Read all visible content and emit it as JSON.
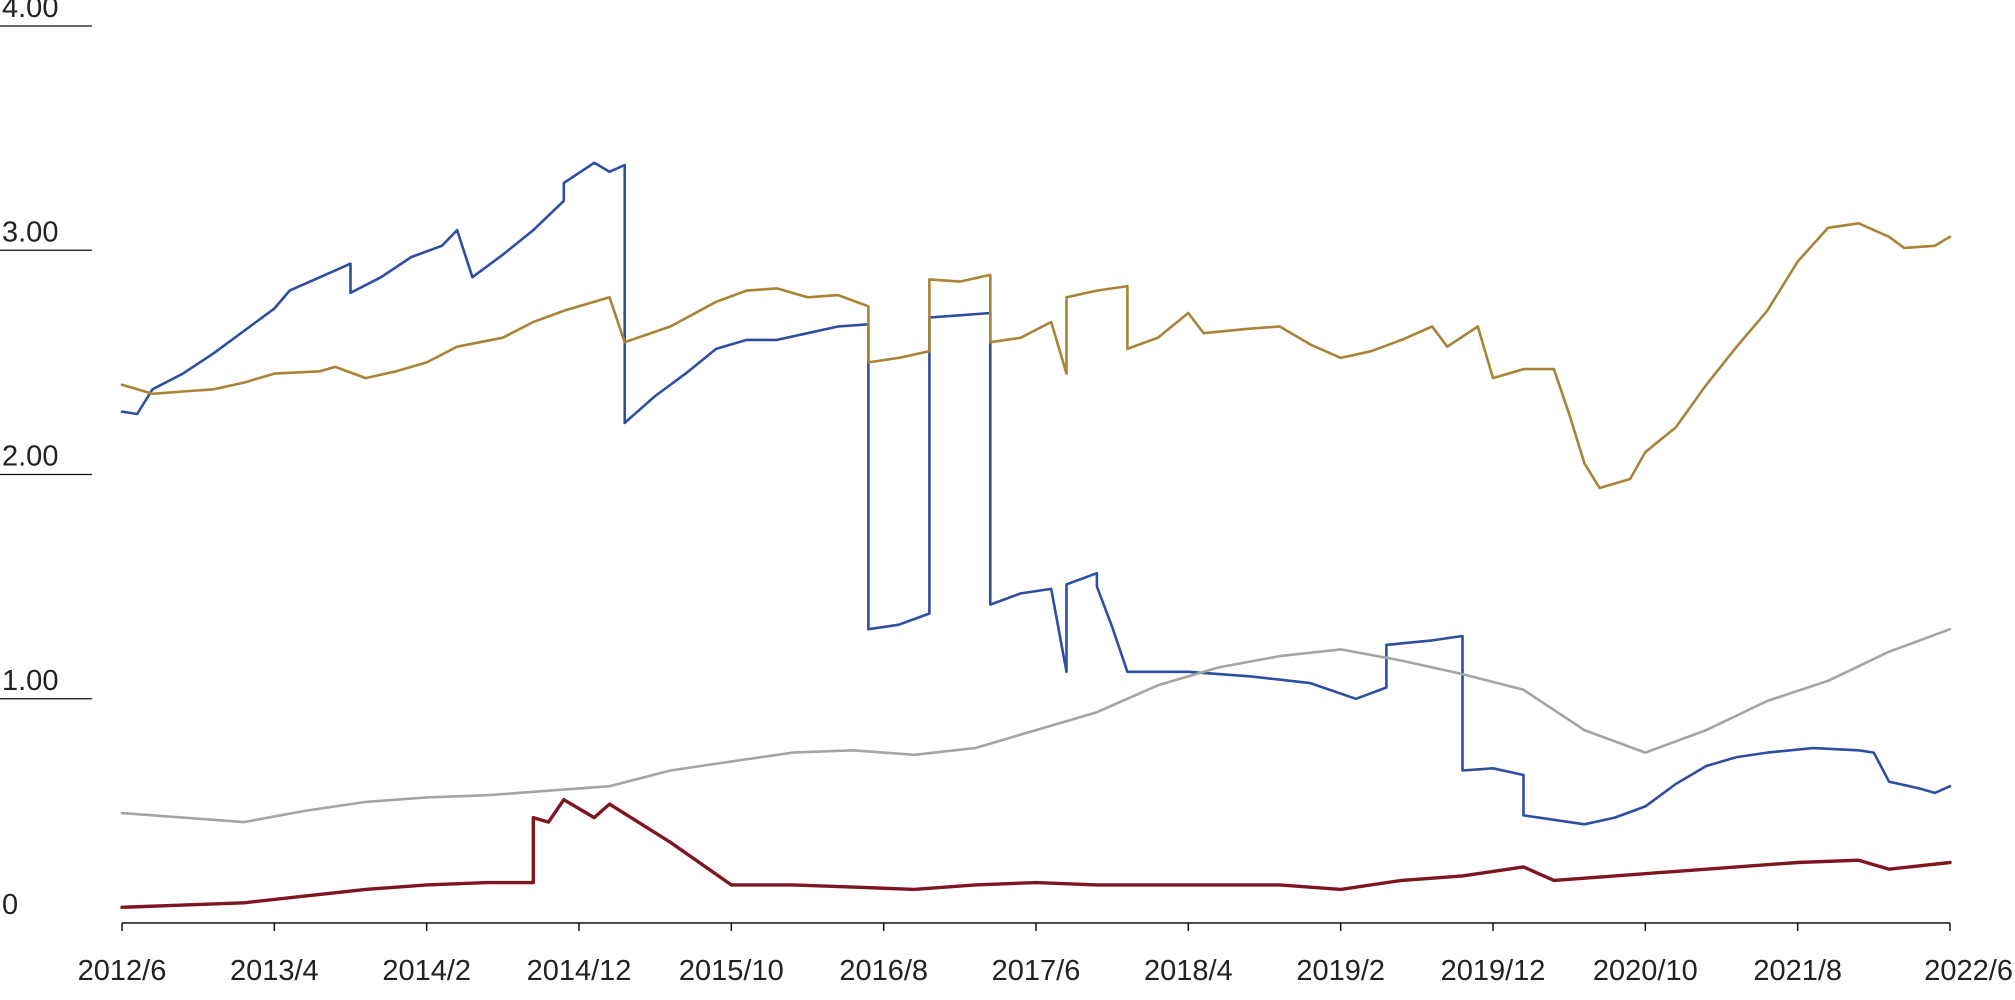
{
  "chart_data": {
    "type": "line",
    "title": "",
    "xlabel": "",
    "ylabel": "",
    "x_ticks": [
      "2012/6",
      "2013/4",
      "2014/2",
      "2014/12",
      "2015/10",
      "2016/8",
      "2017/6",
      "2018/4",
      "2019/2",
      "2019/12",
      "2020/10",
      "2021/8",
      "2022/6"
    ],
    "y_ticks": [
      "0",
      "1.00",
      "2.00",
      "3.00",
      "4.00"
    ],
    "xlim": [
      "2012-06",
      "2022-06"
    ],
    "ylim": [
      0,
      4
    ],
    "grid": false,
    "legend": "none",
    "series": [
      {
        "color": "#2e4fa0",
        "stroke_width": 2.6,
        "points": [
          [
            "2012-06",
            2.28
          ],
          [
            "2012-07",
            2.27
          ],
          [
            "2012-08",
            2.38
          ],
          [
            "2012-10",
            2.45
          ],
          [
            "2012-12",
            2.54
          ],
          [
            "2013-02",
            2.64
          ],
          [
            "2013-04",
            2.74
          ],
          [
            "2013-05",
            2.82
          ],
          [
            "2013-07",
            2.88
          ],
          [
            "2013-09",
            2.94
          ],
          [
            "2013-09",
            2.81
          ],
          [
            "2013-11",
            2.88
          ],
          [
            "2014-01",
            2.97
          ],
          [
            "2014-03",
            3.02
          ],
          [
            "2014-04",
            3.09
          ],
          [
            "2014-05",
            2.88
          ],
          [
            "2014-07",
            2.98
          ],
          [
            "2014-09",
            3.09
          ],
          [
            "2014-11",
            3.22
          ],
          [
            "2014-11",
            3.3
          ],
          [
            "2015-01",
            3.39
          ],
          [
            "2015-02",
            3.35
          ],
          [
            "2015-03",
            3.38
          ],
          [
            "2015-03",
            2.23
          ],
          [
            "2015-05",
            2.35
          ],
          [
            "2015-07",
            2.45
          ],
          [
            "2015-09",
            2.56
          ],
          [
            "2015-11",
            2.6
          ],
          [
            "2016-01",
            2.6
          ],
          [
            "2016-03",
            2.63
          ],
          [
            "2016-05",
            2.66
          ],
          [
            "2016-07",
            2.67
          ],
          [
            "2016-07",
            1.31
          ],
          [
            "2016-09",
            1.33
          ],
          [
            "2016-11",
            1.38
          ],
          [
            "2016-11",
            2.7
          ],
          [
            "2017-01",
            2.71
          ],
          [
            "2017-03",
            2.72
          ],
          [
            "2017-03",
            1.42
          ],
          [
            "2017-05",
            1.47
          ],
          [
            "2017-07",
            1.49
          ],
          [
            "2017-08",
            1.12
          ],
          [
            "2017-08",
            1.51
          ],
          [
            "2017-10",
            1.56
          ],
          [
            "2017-10",
            1.5
          ],
          [
            "2017-11",
            1.32
          ],
          [
            "2017-12",
            1.12
          ],
          [
            "2018-04",
            1.12
          ],
          [
            "2018-08",
            1.1
          ],
          [
            "2018-12",
            1.07
          ],
          [
            "2019-03",
            1.0
          ],
          [
            "2019-05",
            1.05
          ],
          [
            "2019-05",
            1.24
          ],
          [
            "2019-08",
            1.26
          ],
          [
            "2019-10",
            1.28
          ],
          [
            "2019-10",
            0.68
          ],
          [
            "2019-12",
            0.69
          ],
          [
            "2020-02",
            0.66
          ],
          [
            "2020-02",
            0.48
          ],
          [
            "2020-04",
            0.46
          ],
          [
            "2020-06",
            0.44
          ],
          [
            "2020-08",
            0.47
          ],
          [
            "2020-10",
            0.52
          ],
          [
            "2020-12",
            0.62
          ],
          [
            "2021-02",
            0.7
          ],
          [
            "2021-04",
            0.74
          ],
          [
            "2021-06",
            0.76
          ],
          [
            "2021-09",
            0.78
          ],
          [
            "2021-12",
            0.77
          ],
          [
            "2022-01",
            0.76
          ],
          [
            "2022-02",
            0.63
          ],
          [
            "2022-04",
            0.6
          ],
          [
            "2022-05",
            0.58
          ],
          [
            "2022-06",
            0.61
          ]
        ]
      },
      {
        "color": "#a98336",
        "stroke_width": 2.6,
        "points": [
          [
            "2012-06",
            2.4
          ],
          [
            "2012-08",
            2.36
          ],
          [
            "2012-10",
            2.37
          ],
          [
            "2012-12",
            2.38
          ],
          [
            "2013-02",
            2.41
          ],
          [
            "2013-04",
            2.45
          ],
          [
            "2013-07",
            2.46
          ],
          [
            "2013-08",
            2.48
          ],
          [
            "2013-10",
            2.43
          ],
          [
            "2013-12",
            2.46
          ],
          [
            "2014-02",
            2.5
          ],
          [
            "2014-04",
            2.57
          ],
          [
            "2014-07",
            2.61
          ],
          [
            "2014-09",
            2.68
          ],
          [
            "2014-11",
            2.73
          ],
          [
            "2015-02",
            2.79
          ],
          [
            "2015-03",
            2.59
          ],
          [
            "2015-06",
            2.66
          ],
          [
            "2015-09",
            2.77
          ],
          [
            "2015-11",
            2.82
          ],
          [
            "2016-01",
            2.83
          ],
          [
            "2016-03",
            2.79
          ],
          [
            "2016-05",
            2.8
          ],
          [
            "2016-07",
            2.75
          ],
          [
            "2016-07",
            2.5
          ],
          [
            "2016-09",
            2.52
          ],
          [
            "2016-11",
            2.55
          ],
          [
            "2016-11",
            2.87
          ],
          [
            "2017-01",
            2.86
          ],
          [
            "2017-03",
            2.89
          ],
          [
            "2017-03",
            2.59
          ],
          [
            "2017-05",
            2.61
          ],
          [
            "2017-07",
            2.68
          ],
          [
            "2017-08",
            2.45
          ],
          [
            "2017-08",
            2.79
          ],
          [
            "2017-10",
            2.82
          ],
          [
            "2017-12",
            2.84
          ],
          [
            "2017-12",
            2.56
          ],
          [
            "2018-02",
            2.61
          ],
          [
            "2018-04",
            2.72
          ],
          [
            "2018-05",
            2.63
          ],
          [
            "2018-08",
            2.65
          ],
          [
            "2018-10",
            2.66
          ],
          [
            "2018-12",
            2.58
          ],
          [
            "2019-02",
            2.52
          ],
          [
            "2019-04",
            2.55
          ],
          [
            "2019-06",
            2.6
          ],
          [
            "2019-08",
            2.66
          ],
          [
            "2019-09",
            2.57
          ],
          [
            "2019-11",
            2.66
          ],
          [
            "2019-12",
            2.43
          ],
          [
            "2020-02",
            2.47
          ],
          [
            "2020-04",
            2.47
          ],
          [
            "2020-05",
            2.27
          ],
          [
            "2020-06",
            2.05
          ],
          [
            "2020-07",
            1.94
          ],
          [
            "2020-09",
            1.98
          ],
          [
            "2020-10",
            2.1
          ],
          [
            "2020-12",
            2.21
          ],
          [
            "2021-02",
            2.4
          ],
          [
            "2021-04",
            2.57
          ],
          [
            "2021-06",
            2.73
          ],
          [
            "2021-08",
            2.95
          ],
          [
            "2021-10",
            3.1
          ],
          [
            "2021-12",
            3.12
          ],
          [
            "2022-02",
            3.06
          ],
          [
            "2022-03",
            3.01
          ],
          [
            "2022-05",
            3.02
          ],
          [
            "2022-06",
            3.06
          ]
        ]
      },
      {
        "color": "#a4a4a4",
        "stroke_width": 2.6,
        "points": [
          [
            "2012-06",
            0.49
          ],
          [
            "2012-10",
            0.47
          ],
          [
            "2013-02",
            0.45
          ],
          [
            "2013-06",
            0.5
          ],
          [
            "2013-10",
            0.54
          ],
          [
            "2014-02",
            0.56
          ],
          [
            "2014-06",
            0.57
          ],
          [
            "2014-10",
            0.59
          ],
          [
            "2015-02",
            0.61
          ],
          [
            "2015-06",
            0.68
          ],
          [
            "2015-10",
            0.72
          ],
          [
            "2016-02",
            0.76
          ],
          [
            "2016-06",
            0.77
          ],
          [
            "2016-10",
            0.75
          ],
          [
            "2017-02",
            0.78
          ],
          [
            "2017-06",
            0.86
          ],
          [
            "2017-10",
            0.94
          ],
          [
            "2018-02",
            1.06
          ],
          [
            "2018-06",
            1.14
          ],
          [
            "2018-10",
            1.19
          ],
          [
            "2019-02",
            1.22
          ],
          [
            "2019-06",
            1.17
          ],
          [
            "2019-10",
            1.11
          ],
          [
            "2020-02",
            1.04
          ],
          [
            "2020-06",
            0.86
          ],
          [
            "2020-10",
            0.76
          ],
          [
            "2021-02",
            0.86
          ],
          [
            "2021-06",
            0.99
          ],
          [
            "2021-10",
            1.08
          ],
          [
            "2022-02",
            1.21
          ],
          [
            "2022-06",
            1.31
          ]
        ]
      },
      {
        "color": "#7e1621",
        "stroke_width": 3.4,
        "points": [
          [
            "2012-06",
            0.07
          ],
          [
            "2012-10",
            0.08
          ],
          [
            "2013-02",
            0.09
          ],
          [
            "2013-06",
            0.12
          ],
          [
            "2013-10",
            0.15
          ],
          [
            "2014-02",
            0.17
          ],
          [
            "2014-06",
            0.18
          ],
          [
            "2014-09",
            0.18
          ],
          [
            "2014-09",
            0.47
          ],
          [
            "2014-10",
            0.45
          ],
          [
            "2014-11",
            0.55
          ],
          [
            "2015-01",
            0.47
          ],
          [
            "2015-02",
            0.53
          ],
          [
            "2015-06",
            0.36
          ],
          [
            "2015-10",
            0.17
          ],
          [
            "2016-02",
            0.17
          ],
          [
            "2016-06",
            0.16
          ],
          [
            "2016-10",
            0.15
          ],
          [
            "2017-02",
            0.17
          ],
          [
            "2017-06",
            0.18
          ],
          [
            "2017-10",
            0.17
          ],
          [
            "2018-02",
            0.17
          ],
          [
            "2018-06",
            0.17
          ],
          [
            "2018-10",
            0.17
          ],
          [
            "2019-02",
            0.15
          ],
          [
            "2019-06",
            0.19
          ],
          [
            "2019-10",
            0.21
          ],
          [
            "2020-02",
            0.25
          ],
          [
            "2020-04",
            0.19
          ],
          [
            "2020-08",
            0.21
          ],
          [
            "2020-12",
            0.23
          ],
          [
            "2021-04",
            0.25
          ],
          [
            "2021-08",
            0.27
          ],
          [
            "2021-12",
            0.28
          ],
          [
            "2022-02",
            0.24
          ],
          [
            "2022-06",
            0.27
          ]
        ]
      }
    ]
  }
}
